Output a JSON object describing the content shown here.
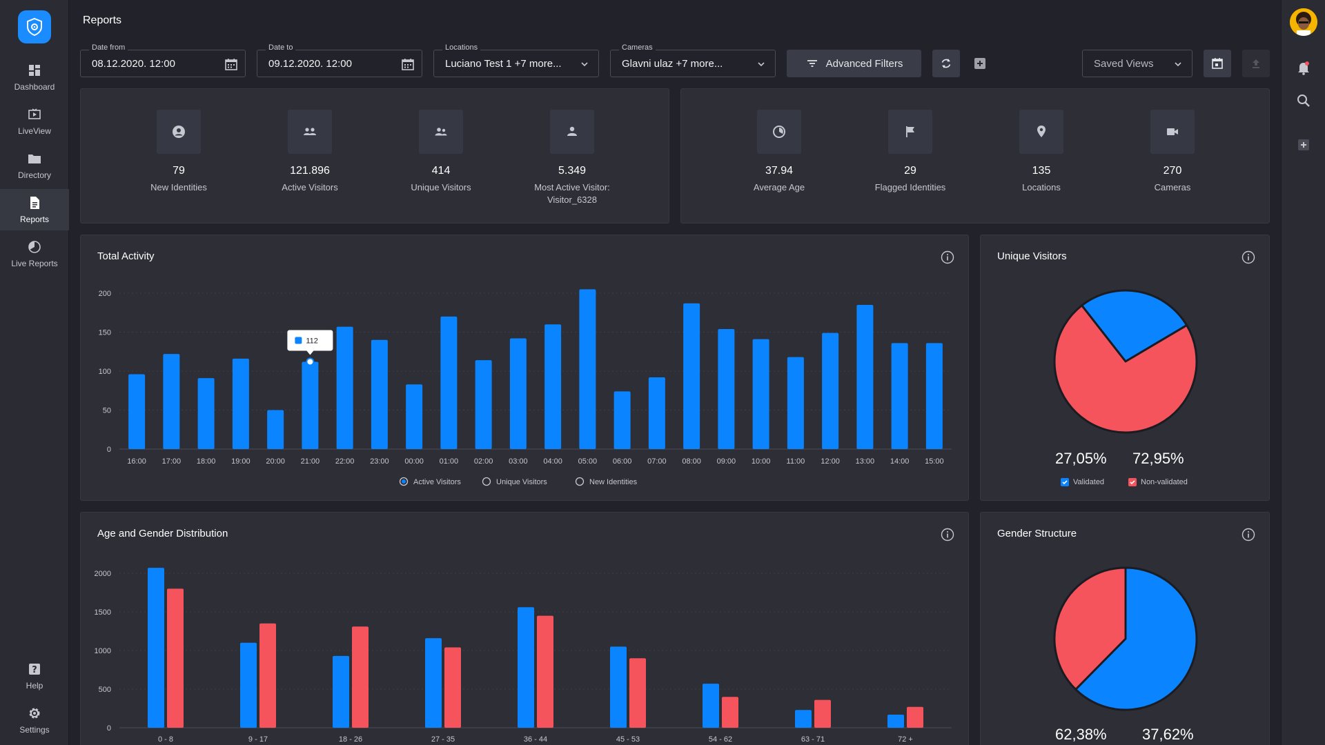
{
  "sidebar": {
    "items": [
      {
        "label": "Dashboard",
        "icon": "dashboard-icon"
      },
      {
        "label": "LiveView",
        "icon": "liveview-icon"
      },
      {
        "label": "Directory",
        "icon": "folder-icon"
      },
      {
        "label": "Reports",
        "icon": "document-icon",
        "active": true
      },
      {
        "label": "Live Reports",
        "icon": "pie-icon"
      }
    ],
    "bottom": [
      {
        "label": "Help",
        "icon": "help-icon"
      },
      {
        "label": "Settings",
        "icon": "gear-icon"
      }
    ]
  },
  "header": {
    "title": "Reports",
    "date_from": {
      "label": "Date from",
      "value": "08.12.2020. 12:00"
    },
    "date_to": {
      "label": "Date to",
      "value": "09.12.2020. 12:00"
    },
    "locations": {
      "label": "Locations",
      "value": "Luciano Test 1 +7 more..."
    },
    "cameras": {
      "label": "Cameras",
      "value": "Glavni ulaz +7 more..."
    },
    "advanced_filters": "Advanced Filters",
    "saved_views": "Saved Views"
  },
  "stats_left": [
    {
      "value": "79",
      "label": "New Identities",
      "icon": "user-circle-icon"
    },
    {
      "value": "121.896",
      "label": "Active Visitors",
      "icon": "group-icon"
    },
    {
      "value": "414",
      "label": "Unique Visitors",
      "icon": "users-icon"
    },
    {
      "value": "5.349",
      "label": "Most Active Visitor:",
      "label2": "Visitor_6328",
      "icon": "person-icon"
    }
  ],
  "stats_right": [
    {
      "value": "37.94",
      "label": "Average Age",
      "icon": "clock-icon"
    },
    {
      "value": "29",
      "label": "Flagged Identities",
      "icon": "flag-icon"
    },
    {
      "value": "135",
      "label": "Locations",
      "icon": "location-pin-icon"
    },
    {
      "value": "270",
      "label": "Cameras",
      "icon": "video-camera-icon"
    }
  ],
  "colors": {
    "blue": "#0a84ff",
    "red": "#f5545d",
    "bg": "#22232a",
    "card": "#2d2e36"
  },
  "total_activity": {
    "title": "Total Activity",
    "tooltip": "112",
    "legend": [
      "Active Visitors",
      "Unique Visitors",
      "New Identities"
    ]
  },
  "unique_visitors": {
    "title": "Unique Visitors",
    "validated_pct": "27,05%",
    "nonvalidated_pct": "72,95%",
    "legend": [
      "Validated",
      "Non-validated"
    ]
  },
  "age_gender": {
    "title": "Age and Gender Distribution"
  },
  "gender_structure": {
    "title": "Gender Structure",
    "pct_left": "62,38%",
    "pct_right": "37,62%"
  },
  "chart_data": [
    {
      "type": "bar",
      "title": "Total Activity",
      "categories": [
        "16:00",
        "17:00",
        "18:00",
        "19:00",
        "20:00",
        "21:00",
        "22:00",
        "23:00",
        "00:00",
        "01:00",
        "02:00",
        "03:00",
        "04:00",
        "05:00",
        "06:00",
        "07:00",
        "08:00",
        "09:00",
        "10:00",
        "11:00",
        "12:00",
        "13:00",
        "14:00",
        "15:00"
      ],
      "series": [
        {
          "name": "Active Visitors",
          "values": [
            96,
            122,
            91,
            116,
            50,
            112,
            157,
            140,
            83,
            170,
            114,
            142,
            160,
            205,
            74,
            92,
            187,
            154,
            141,
            118,
            149,
            185,
            136,
            136
          ]
        }
      ],
      "ylim": [
        0,
        200
      ],
      "yticks": [
        0,
        50,
        100,
        150,
        200
      ],
      "grid": true
    },
    {
      "type": "pie",
      "title": "Unique Visitors",
      "categories": [
        "Validated",
        "Non-validated"
      ],
      "values": [
        27.05,
        72.95
      ]
    },
    {
      "type": "bar",
      "title": "Age and Gender Distribution",
      "categories": [
        "0 - 8",
        "9 - 17",
        "18 - 26",
        "27 - 35",
        "36 - 44",
        "45 - 53",
        "54 - 62",
        "63 - 71",
        "72 +"
      ],
      "series": [
        {
          "values": [
            2070,
            1100,
            930,
            1160,
            1560,
            1050,
            570,
            230,
            170
          ]
        },
        {
          "values": [
            1800,
            1350,
            1310,
            1040,
            1450,
            900,
            400,
            360,
            270
          ]
        }
      ],
      "ylim": [
        0,
        2000
      ],
      "yticks": [
        0,
        500,
        1000,
        1500,
        2000
      ],
      "grid": true
    },
    {
      "type": "pie",
      "title": "Gender Structure",
      "values": [
        62.38,
        37.62
      ]
    }
  ]
}
